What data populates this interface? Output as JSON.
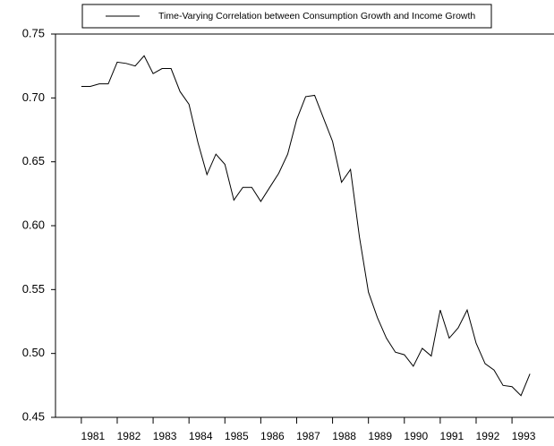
{
  "chart_data": {
    "type": "line",
    "series": [
      {
        "name": "Time-Varying Correlation between Consumption Growth and Income Growth",
        "color": "#000000",
        "x": [
          1981,
          1981.25,
          1981.5,
          1981.75,
          1982,
          1982.25,
          1982.5,
          1982.75,
          1983,
          1983.25,
          1983.5,
          1983.75,
          1984,
          1984.25,
          1984.5,
          1984.75,
          1985,
          1985.25,
          1985.5,
          1985.75,
          1986,
          1986.25,
          1986.5,
          1986.75,
          1987,
          1987.25,
          1987.5,
          1987.75,
          1988,
          1988.25,
          1988.5,
          1988.75,
          1989,
          1989.25,
          1989.5,
          1989.75,
          1990,
          1990.25,
          1990.5,
          1990.75,
          1991,
          1991.25,
          1991.5,
          1991.75,
          1992,
          1992.25,
          1992.5,
          1992.75,
          1993,
          1993.25,
          1993.5
        ],
        "values": [
          0.709,
          0.709,
          0.711,
          0.711,
          0.728,
          0.727,
          0.725,
          0.733,
          0.719,
          0.723,
          0.723,
          0.705,
          0.695,
          0.665,
          0.64,
          0.656,
          0.648,
          0.62,
          0.63,
          0.63,
          0.619,
          0.63,
          0.641,
          0.656,
          0.683,
          0.701,
          0.702,
          0.684,
          0.666,
          0.634,
          0.644,
          0.591,
          0.548,
          0.528,
          0.512,
          0.501,
          0.499,
          0.49,
          0.504,
          0.498,
          0.534,
          0.512,
          0.52,
          0.534,
          0.508,
          0.492,
          0.487,
          0.475,
          0.474,
          0.467,
          0.484
        ]
      }
    ],
    "xlim": [
      1980.28,
      1994.17
    ],
    "xticks": [
      1981,
      1982,
      1983,
      1984,
      1985,
      1986,
      1987,
      1988,
      1989,
      1990,
      1991,
      1992,
      1993
    ],
    "ylim": [
      0.45,
      0.75
    ],
    "yticks": [
      0.45,
      {
        "value": 0.5,
        "label": "0.50"
      },
      0.55,
      {
        "value": 0.6,
        "label": "0.60"
      },
      0.65,
      {
        "value": 0.7,
        "label": "0.70"
      },
      0.75
    ],
    "legend": "top"
  }
}
